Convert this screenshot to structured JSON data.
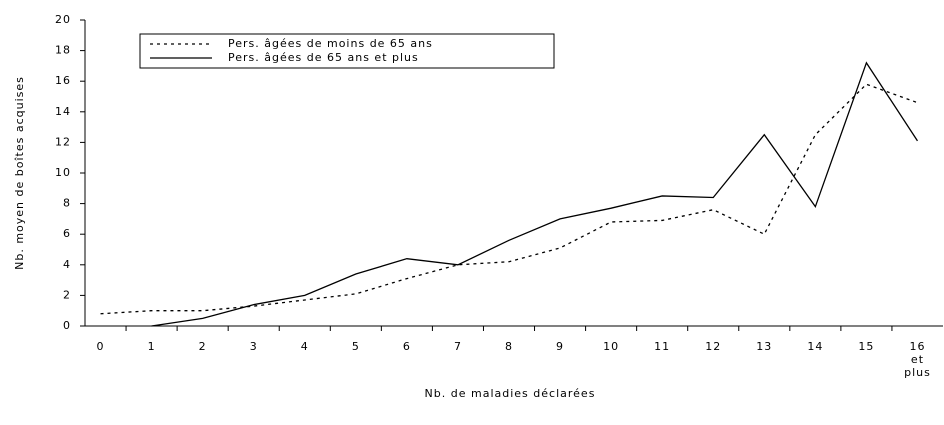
{
  "chart_data": {
    "type": "line",
    "xlabel": "Nb. de maladies déclarées",
    "ylabel": "Nb. moyen de boîtes acquises",
    "categories": [
      "0",
      "1",
      "2",
      "3",
      "4",
      "5",
      "6",
      "7",
      "8",
      "9",
      "10",
      "11",
      "12",
      "13",
      "14",
      "15",
      "16 et plus"
    ],
    "series": [
      {
        "name": "Pers. âgées de moins de 65 ans",
        "color": "#000000",
        "dash": "dotted",
        "values": [
          0.8,
          1.0,
          1.0,
          1.3,
          1.7,
          2.1,
          3.1,
          4.0,
          4.2,
          5.1,
          6.8,
          6.9,
          7.6,
          6.0,
          12.5,
          15.8,
          14.6
        ]
      },
      {
        "name": "Pers. âgées de 65 ans et plus",
        "color": "#000000",
        "dash": "solid",
        "values": [
          null,
          0.0,
          0.5,
          1.4,
          2.0,
          3.4,
          4.4,
          4.0,
          5.6,
          7.0,
          7.7,
          8.5,
          8.4,
          12.5,
          7.8,
          17.2,
          12.1
        ]
      }
    ],
    "ylim": [
      0,
      20
    ],
    "yticks": [
      0,
      2,
      4,
      6,
      8,
      10,
      12,
      14,
      16,
      18,
      20
    ],
    "grid": false
  }
}
